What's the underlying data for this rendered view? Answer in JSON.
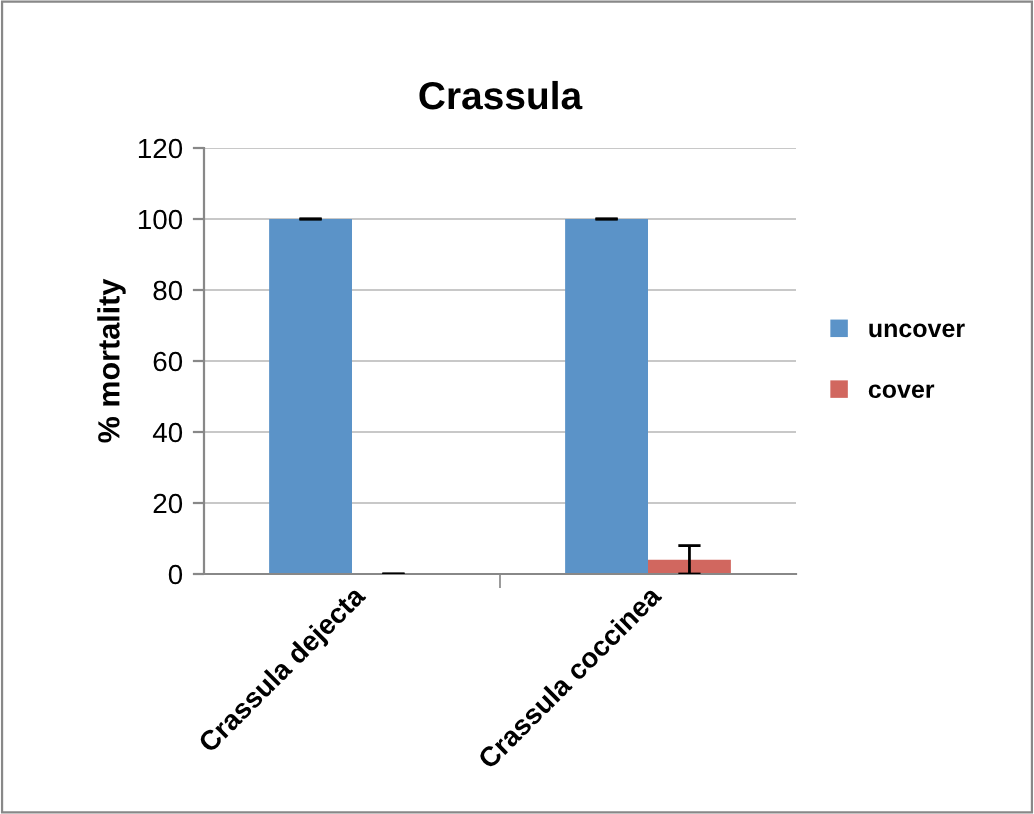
{
  "chart_data": {
    "type": "bar",
    "title": "Crassula",
    "ylabel": "% mortality",
    "categories": [
      "Crassula dejecta",
      "Crassula coccinea"
    ],
    "series": [
      {
        "name": "uncover",
        "color": "#5b93c8",
        "values": [
          100,
          100
        ],
        "errors": [
          0,
          0
        ]
      },
      {
        "name": "cover",
        "color": "#d1675f",
        "values": [
          0,
          4
        ],
        "errors": [
          0,
          4
        ]
      }
    ],
    "ylim": [
      0,
      120
    ],
    "yticks": [
      0,
      20,
      40,
      60,
      80,
      100,
      120
    ],
    "grid": "y",
    "legend": "right"
  }
}
